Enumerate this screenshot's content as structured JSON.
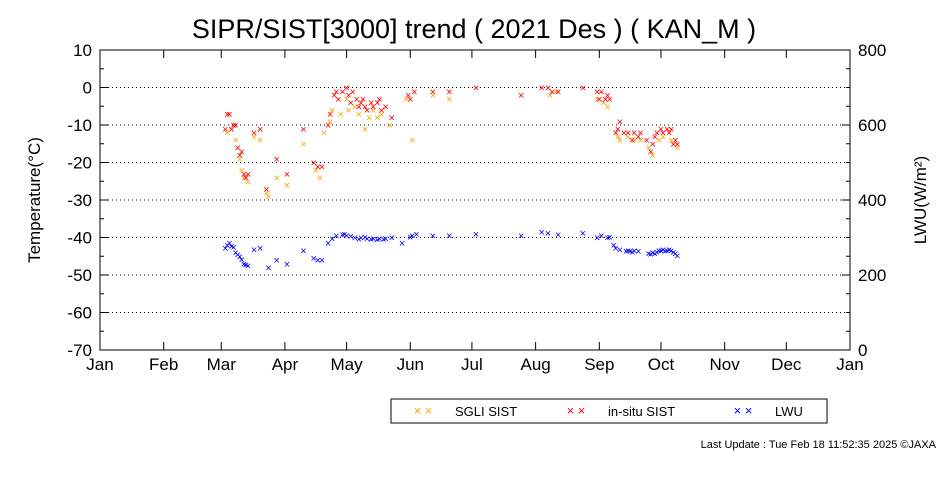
{
  "chart_data": {
    "type": "scatter",
    "title": "SIPR/SIST[3000] trend ( 2021 Des ) ( KAN_M )",
    "xlabel": "",
    "ylabel": "Temperature(°C)",
    "y2label": "LWU(W/m²)",
    "xlim": [
      "2021-01-01",
      "2022-01-01"
    ],
    "ylim": [
      -70,
      10
    ],
    "y2lim": [
      0,
      800
    ],
    "x_ticks": [
      "Jan",
      "Feb",
      "Mar",
      "Apr",
      "May",
      "Jun",
      "Jul",
      "Aug",
      "Sep",
      "Oct",
      "Nov",
      "Dec",
      "Jan"
    ],
    "y_ticks": [
      "10",
      "0",
      "-10",
      "-20",
      "-30",
      "-40",
      "-50",
      "-60",
      "-70"
    ],
    "y2_ticks": [
      "800",
      "600",
      "400",
      "200",
      "0"
    ],
    "grid": "horizontal dotted",
    "legend_position": "bottom-right",
    "series": [
      {
        "name": "SGLI SIST",
        "axis": "left",
        "color": "#ffa500",
        "points": [
          [
            "2021-03-04",
            -12
          ],
          [
            "2021-03-06",
            -11
          ],
          [
            "2021-03-08",
            -14
          ],
          [
            "2021-03-10",
            -19
          ],
          [
            "2021-03-11",
            -22
          ],
          [
            "2021-03-12",
            -24
          ],
          [
            "2021-03-14",
            -25
          ],
          [
            "2021-03-17",
            -13
          ],
          [
            "2021-03-20",
            -14
          ],
          [
            "2021-03-23",
            -28
          ],
          [
            "2021-03-24",
            -29
          ],
          [
            "2021-03-28",
            -24
          ],
          [
            "2021-04-02",
            -26
          ],
          [
            "2021-04-10",
            -15
          ],
          [
            "2021-04-16",
            -22
          ],
          [
            "2021-04-18",
            -24
          ],
          [
            "2021-04-20",
            -12
          ],
          [
            "2021-04-23",
            -9
          ],
          [
            "2021-04-24",
            -6
          ],
          [
            "2021-04-28",
            -7
          ],
          [
            "2021-05-01",
            -3
          ],
          [
            "2021-05-02",
            -6
          ],
          [
            "2021-05-05",
            -5
          ],
          [
            "2021-05-07",
            -7
          ],
          [
            "2021-05-10",
            -11
          ],
          [
            "2021-05-12",
            -8
          ],
          [
            "2021-05-14",
            -6
          ],
          [
            "2021-05-16",
            -8
          ],
          [
            "2021-05-18",
            -7
          ],
          [
            "2021-05-22",
            -10
          ],
          [
            "2021-05-30",
            -3
          ],
          [
            "2021-06-02",
            -14
          ],
          [
            "2021-06-12",
            -2
          ],
          [
            "2021-06-20",
            -3
          ],
          [
            "2021-08-08",
            -2
          ],
          [
            "2021-08-11",
            -1
          ],
          [
            "2021-08-31",
            -3
          ],
          [
            "2021-09-03",
            -4
          ],
          [
            "2021-09-05",
            -5
          ],
          [
            "2021-09-10",
            -13
          ],
          [
            "2021-09-11",
            -14
          ],
          [
            "2021-09-15",
            -13
          ],
          [
            "2021-09-18",
            -14
          ],
          [
            "2021-09-21",
            -14
          ],
          [
            "2021-09-25",
            -16
          ],
          [
            "2021-09-27",
            -18
          ],
          [
            "2021-09-30",
            -14
          ],
          [
            "2021-10-02",
            -13
          ],
          [
            "2021-10-06",
            -14
          ],
          [
            "2021-10-09",
            -16
          ]
        ]
      },
      {
        "name": "in-situ SIST",
        "axis": "left",
        "color": "#ff0000",
        "points": [
          [
            "2021-03-03",
            -11
          ],
          [
            "2021-03-04",
            -7
          ],
          [
            "2021-03-05",
            -7
          ],
          [
            "2021-03-06",
            -11
          ],
          [
            "2021-03-07",
            -10
          ],
          [
            "2021-03-08",
            -10
          ],
          [
            "2021-03-09",
            -16
          ],
          [
            "2021-03-10",
            -18
          ],
          [
            "2021-03-11",
            -17
          ],
          [
            "2021-03-12",
            -23
          ],
          [
            "2021-03-13",
            -24
          ],
          [
            "2021-03-14",
            -23
          ],
          [
            "2021-03-17",
            -12
          ],
          [
            "2021-03-20",
            -11
          ],
          [
            "2021-03-23",
            -27
          ],
          [
            "2021-03-28",
            -19
          ],
          [
            "2021-04-02",
            -23
          ],
          [
            "2021-04-10",
            -11
          ],
          [
            "2021-04-15",
            -20
          ],
          [
            "2021-04-17",
            -21
          ],
          [
            "2021-04-19",
            -21
          ],
          [
            "2021-04-22",
            -10
          ],
          [
            "2021-04-23",
            -7
          ],
          [
            "2021-04-25",
            -2
          ],
          [
            "2021-04-26",
            -1
          ],
          [
            "2021-04-27",
            -3
          ],
          [
            "2021-04-29",
            -1
          ],
          [
            "2021-05-01",
            0
          ],
          [
            "2021-05-02",
            -2
          ],
          [
            "2021-05-03",
            -4
          ],
          [
            "2021-05-04",
            -1
          ],
          [
            "2021-05-06",
            -3
          ],
          [
            "2021-05-07",
            -5
          ],
          [
            "2021-05-08",
            -4
          ],
          [
            "2021-05-09",
            -3
          ],
          [
            "2021-05-10",
            -5
          ],
          [
            "2021-05-11",
            -6
          ],
          [
            "2021-05-13",
            -4
          ],
          [
            "2021-05-14",
            -5
          ],
          [
            "2021-05-16",
            -4
          ],
          [
            "2021-05-17",
            -3
          ],
          [
            "2021-05-18",
            -6
          ],
          [
            "2021-05-20",
            -5
          ],
          [
            "2021-05-23",
            -8
          ],
          [
            "2021-05-31",
            -2
          ],
          [
            "2021-06-01",
            -3
          ],
          [
            "2021-06-03",
            -1
          ],
          [
            "2021-06-12",
            -1
          ],
          [
            "2021-06-20",
            -1
          ],
          [
            "2021-07-03",
            0
          ],
          [
            "2021-07-25",
            -2
          ],
          [
            "2021-08-04",
            0
          ],
          [
            "2021-08-07",
            0
          ],
          [
            "2021-08-09",
            -1
          ],
          [
            "2021-08-12",
            -1
          ],
          [
            "2021-08-24",
            0
          ],
          [
            "2021-08-31",
            -1
          ],
          [
            "2021-09-01",
            -3
          ],
          [
            "2021-09-02",
            -1
          ],
          [
            "2021-09-04",
            -3
          ],
          [
            "2021-09-05",
            -2
          ],
          [
            "2021-09-06",
            -3
          ],
          [
            "2021-09-09",
            -12
          ],
          [
            "2021-09-10",
            -11
          ],
          [
            "2021-09-11",
            -9
          ],
          [
            "2021-09-13",
            -12
          ],
          [
            "2021-09-15",
            -12
          ],
          [
            "2021-09-17",
            -14
          ],
          [
            "2021-09-18",
            -12
          ],
          [
            "2021-09-20",
            -13
          ],
          [
            "2021-09-21",
            -12
          ],
          [
            "2021-09-24",
            -14
          ],
          [
            "2021-09-26",
            -17
          ],
          [
            "2021-09-27",
            -15
          ],
          [
            "2021-09-28",
            -13
          ],
          [
            "2021-09-29",
            -12
          ],
          [
            "2021-10-01",
            -11
          ],
          [
            "2021-10-02",
            -12
          ],
          [
            "2021-10-04",
            -11
          ],
          [
            "2021-10-05",
            -12
          ],
          [
            "2021-10-06",
            -11
          ],
          [
            "2021-10-07",
            -15
          ],
          [
            "2021-10-08",
            -14
          ],
          [
            "2021-10-09",
            -15
          ]
        ]
      },
      {
        "name": "LWU",
        "axis": "right",
        "color": "#0000ff",
        "points": [
          [
            "2021-03-03",
            272
          ],
          [
            "2021-03-04",
            280
          ],
          [
            "2021-03-05",
            285
          ],
          [
            "2021-03-06",
            278
          ],
          [
            "2021-03-07",
            275
          ],
          [
            "2021-03-08",
            260
          ],
          [
            "2021-03-09",
            255
          ],
          [
            "2021-03-10",
            250
          ],
          [
            "2021-03-11",
            242
          ],
          [
            "2021-03-12",
            230
          ],
          [
            "2021-03-13",
            228
          ],
          [
            "2021-03-14",
            225
          ],
          [
            "2021-03-17",
            268
          ],
          [
            "2021-03-20",
            272
          ],
          [
            "2021-03-24",
            220
          ],
          [
            "2021-03-28",
            240
          ],
          [
            "2021-04-02",
            230
          ],
          [
            "2021-04-10",
            265
          ],
          [
            "2021-04-15",
            245
          ],
          [
            "2021-04-17",
            240
          ],
          [
            "2021-04-19",
            240
          ],
          [
            "2021-04-22",
            285
          ],
          [
            "2021-04-24",
            298
          ],
          [
            "2021-04-26",
            305
          ],
          [
            "2021-04-29",
            308
          ],
          [
            "2021-04-30",
            310
          ],
          [
            "2021-05-01",
            305
          ],
          [
            "2021-05-03",
            304
          ],
          [
            "2021-05-05",
            300
          ],
          [
            "2021-05-07",
            296
          ],
          [
            "2021-05-08",
            300
          ],
          [
            "2021-05-10",
            302
          ],
          [
            "2021-05-11",
            298
          ],
          [
            "2021-05-13",
            296
          ],
          [
            "2021-05-14",
            298
          ],
          [
            "2021-05-16",
            295
          ],
          [
            "2021-05-17",
            298
          ],
          [
            "2021-05-19",
            296
          ],
          [
            "2021-05-20",
            297
          ],
          [
            "2021-05-23",
            300
          ],
          [
            "2021-05-28",
            285
          ],
          [
            "2021-06-01",
            302
          ],
          [
            "2021-06-02",
            306
          ],
          [
            "2021-06-04",
            310
          ],
          [
            "2021-06-12",
            305
          ],
          [
            "2021-06-20",
            305
          ],
          [
            "2021-07-03",
            310
          ],
          [
            "2021-07-25",
            305
          ],
          [
            "2021-08-04",
            315
          ],
          [
            "2021-08-07",
            312
          ],
          [
            "2021-08-12",
            308
          ],
          [
            "2021-08-24",
            312
          ],
          [
            "2021-08-31",
            300
          ],
          [
            "2021-09-02",
            305
          ],
          [
            "2021-09-05",
            300
          ],
          [
            "2021-09-06",
            302
          ],
          [
            "2021-09-08",
            280
          ],
          [
            "2021-09-09",
            272
          ],
          [
            "2021-09-11",
            268
          ],
          [
            "2021-09-14",
            264
          ],
          [
            "2021-09-15",
            266
          ],
          [
            "2021-09-16",
            264
          ],
          [
            "2021-09-17",
            262
          ],
          [
            "2021-09-18",
            265
          ],
          [
            "2021-09-20",
            264
          ],
          [
            "2021-09-25",
            258
          ],
          [
            "2021-09-26",
            256
          ],
          [
            "2021-09-27",
            260
          ],
          [
            "2021-09-28",
            258
          ],
          [
            "2021-09-29",
            262
          ],
          [
            "2021-09-30",
            266
          ],
          [
            "2021-10-01",
            265
          ],
          [
            "2021-10-02",
            268
          ],
          [
            "2021-10-03",
            264
          ],
          [
            "2021-10-04",
            266
          ],
          [
            "2021-10-05",
            268
          ],
          [
            "2021-10-06",
            265
          ],
          [
            "2021-10-07",
            262
          ],
          [
            "2021-10-08",
            258
          ],
          [
            "2021-10-09",
            252
          ]
        ]
      }
    ]
  },
  "footer": "Last Update : Tue Feb 18 11:52:35 2025  ©JAXA"
}
